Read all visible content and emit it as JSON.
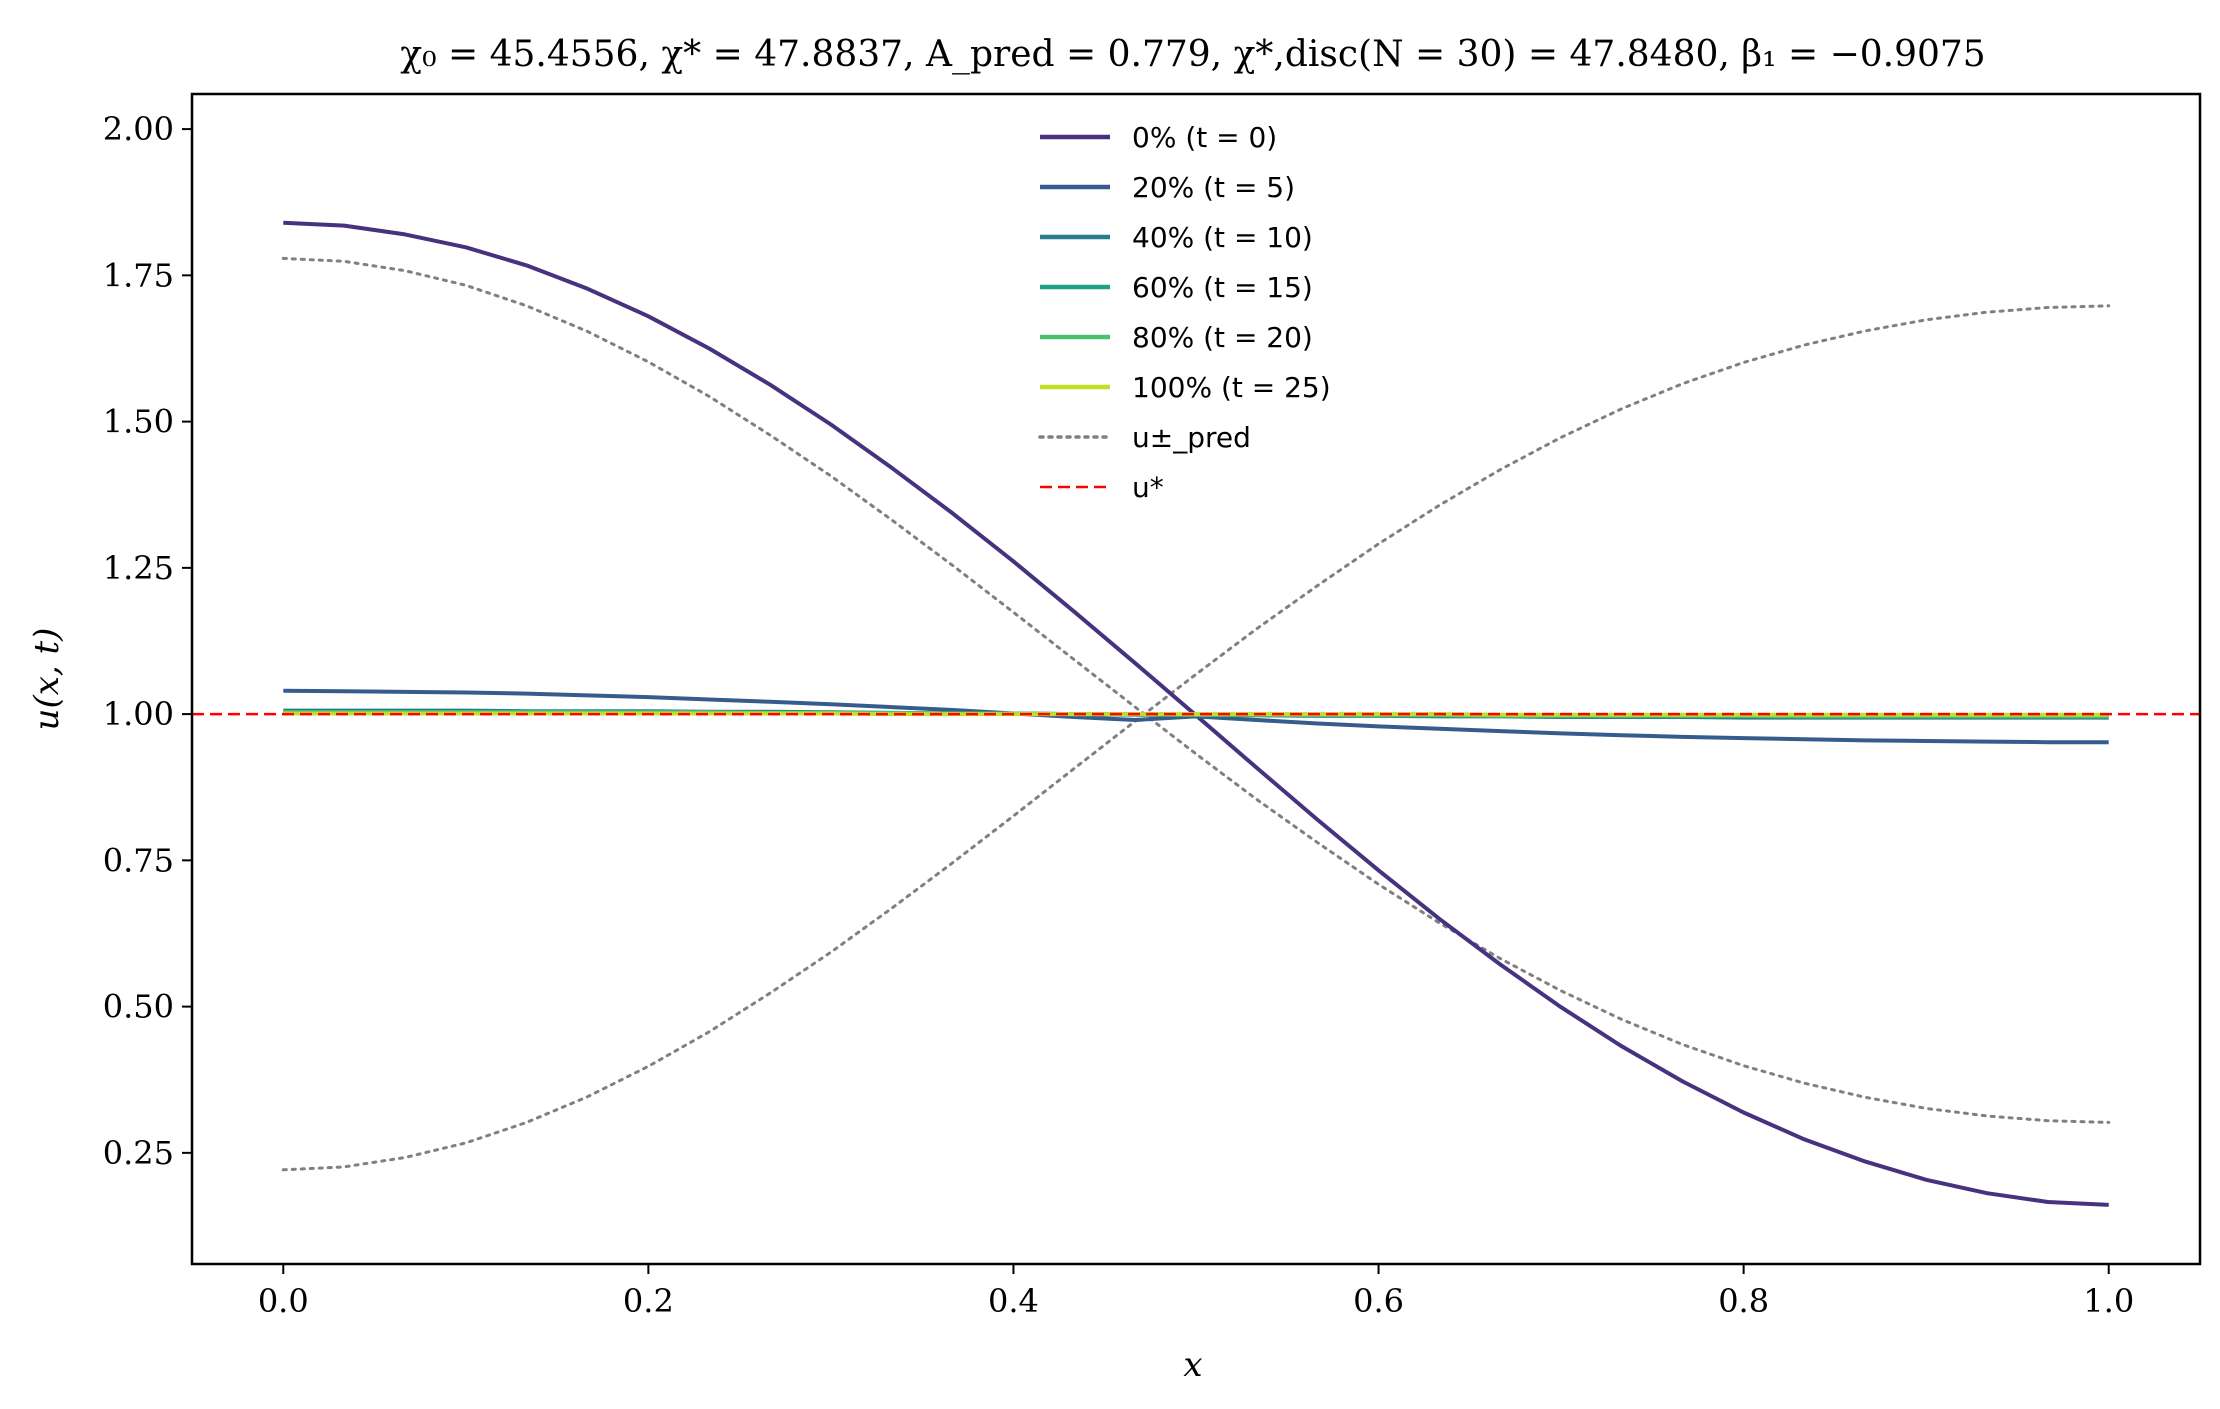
{
  "chart_data": {
    "type": "line",
    "title": "χ₀ = 45.4556,  χ* = 47.8837,  A_pred = 0.779,  χ*,disc(N = 30) = 47.8480,  β₁ = −0.9075",
    "xlabel": "x",
    "ylabel": "u(x, t)",
    "xlim": [
      -0.05,
      1.05
    ],
    "ylim": [
      0.06,
      2.06
    ],
    "xticks": [
      0.0,
      0.2,
      0.4,
      0.6,
      0.8,
      1.0
    ],
    "xtick_labels": [
      "0.0",
      "0.2",
      "0.4",
      "0.6",
      "0.8",
      "1.0"
    ],
    "yticks": [
      0.25,
      0.5,
      0.75,
      1.0,
      1.25,
      1.5,
      1.75,
      2.0
    ],
    "ytick_labels": [
      "0.25",
      "0.50",
      "0.75",
      "1.00",
      "1.25",
      "1.50",
      "1.75",
      "2.00"
    ],
    "grid": false,
    "legend_position": "top-center",
    "x": [
      0.0,
      0.0333,
      0.0667,
      0.1,
      0.1333,
      0.1667,
      0.2,
      0.2333,
      0.2667,
      0.3,
      0.3333,
      0.3667,
      0.4,
      0.4333,
      0.4667,
      0.5,
      0.5333,
      0.5667,
      0.6,
      0.6333,
      0.6667,
      0.7,
      0.7333,
      0.7667,
      0.8,
      0.8333,
      0.8667,
      0.9,
      0.9333,
      0.9667,
      1.0
    ],
    "series": [
      {
        "name": "0% (t = 0)",
        "color": "#46327e",
        "style": "solid",
        "values": [
          1.84,
          1.835,
          1.82,
          1.798,
          1.767,
          1.727,
          1.68,
          1.625,
          1.563,
          1.495,
          1.421,
          1.343,
          1.261,
          1.175,
          1.087,
          0.998,
          0.908,
          0.819,
          0.733,
          0.65,
          0.572,
          0.499,
          0.432,
          0.372,
          0.319,
          0.273,
          0.235,
          0.204,
          0.181,
          0.166,
          0.161
        ]
      },
      {
        "name": "20% (t = 5)",
        "color": "#365c8d",
        "style": "solid",
        "values": [
          1.04,
          1.039,
          1.038,
          1.037,
          1.035,
          1.032,
          1.029,
          1.025,
          1.021,
          1.017,
          1.012,
          1.007,
          1.001,
          0.995,
          0.99,
          0.996,
          0.99,
          0.984,
          0.979,
          0.975,
          0.971,
          0.967,
          0.964,
          0.961,
          0.959,
          0.957,
          0.955,
          0.954,
          0.953,
          0.952,
          0.952
        ]
      },
      {
        "name": "40% (t = 10)",
        "color": "#277f8e",
        "style": "solid",
        "values": [
          1.006,
          1.006,
          1.006,
          1.006,
          1.005,
          1.005,
          1.005,
          1.004,
          1.004,
          1.003,
          1.002,
          1.001,
          1.001,
          1.0,
          0.999,
          0.998,
          0.998,
          0.997,
          0.997,
          0.996,
          0.996,
          0.995,
          0.995,
          0.995,
          0.994,
          0.994,
          0.994,
          0.994,
          0.994,
          0.994,
          0.994
        ]
      },
      {
        "name": "60% (t = 15)",
        "color": "#1fa187",
        "style": "solid",
        "values": [
          1.003,
          1.003,
          1.003,
          1.003,
          1.003,
          1.003,
          1.002,
          1.002,
          1.002,
          1.002,
          1.001,
          1.001,
          1.001,
          1.0,
          1.0,
          0.999,
          0.999,
          0.999,
          0.998,
          0.998,
          0.998,
          0.998,
          0.997,
          0.997,
          0.997,
          0.997,
          0.997,
          0.997,
          0.997,
          0.997,
          0.997
        ]
      },
      {
        "name": "80% (t = 20)",
        "color": "#4ac16d",
        "style": "solid",
        "values": [
          1.003,
          1.003,
          1.003,
          1.003,
          1.003,
          1.003,
          1.003,
          1.003,
          1.002,
          1.002,
          1.002,
          1.001,
          1.001,
          1.0,
          1.0,
          0.999,
          0.999,
          0.998,
          0.998,
          0.998,
          0.997,
          0.997,
          0.997,
          0.997,
          0.997,
          0.996,
          0.996,
          0.996,
          0.996,
          0.996,
          0.996
        ]
      },
      {
        "name": "100% (t = 25)",
        "color": "#c0df25",
        "style": "solid",
        "values": [
          1.001,
          1.001,
          1.001,
          1.001,
          1.001,
          1.001,
          1.001,
          1.001,
          1.001,
          1.001,
          1.0,
          1.0,
          1.0,
          1.0,
          1.0,
          1.0,
          1.0,
          1.0,
          1.0,
          1.0,
          0.999,
          0.999,
          0.999,
          0.999,
          0.999,
          0.999,
          0.999,
          0.999,
          0.999,
          0.999,
          0.999
        ]
      },
      {
        "name": "u±_pred",
        "color": "#808080",
        "style": "dotted",
        "legend": true,
        "values": [
          1.779,
          1.774,
          1.758,
          1.733,
          1.698,
          1.654,
          1.602,
          1.543,
          1.477,
          1.407,
          1.332,
          1.254,
          1.174,
          1.093,
          1.012,
          0.932,
          0.854,
          0.78,
          0.709,
          0.643,
          0.582,
          0.527,
          0.478,
          0.435,
          0.399,
          0.369,
          0.345,
          0.326,
          0.313,
          0.305,
          0.302
        ]
      },
      {
        "name": "u-_pred",
        "color": "#808080",
        "style": "dotted",
        "legend": false,
        "values": [
          0.221,
          0.226,
          0.242,
          0.267,
          0.302,
          0.346,
          0.398,
          0.457,
          0.523,
          0.593,
          0.668,
          0.746,
          0.826,
          0.907,
          0.988,
          1.068,
          1.146,
          1.22,
          1.291,
          1.357,
          1.418,
          1.473,
          1.522,
          1.565,
          1.601,
          1.631,
          1.655,
          1.674,
          1.687,
          1.695,
          1.698
        ]
      }
    ],
    "hlines": [
      {
        "name": "u*",
        "y": 1.0,
        "color": "#ff0000",
        "style": "dashed"
      }
    ],
    "legend": [
      {
        "label": "0% (t = 0)",
        "color": "#46327e",
        "style": "solid"
      },
      {
        "label": "20% (t = 5)",
        "color": "#365c8d",
        "style": "solid"
      },
      {
        "label": "40% (t = 10)",
        "color": "#277f8e",
        "style": "solid"
      },
      {
        "label": "60% (t = 15)",
        "color": "#1fa187",
        "style": "solid"
      },
      {
        "label": "80% (t = 20)",
        "color": "#4ac16d",
        "style": "solid"
      },
      {
        "label": "100% (t = 25)",
        "color": "#c0df25",
        "style": "solid"
      },
      {
        "label": "u±_pred",
        "color": "#808080",
        "style": "dotted"
      },
      {
        "label": "u*",
        "color": "#ff0000",
        "style": "dashed"
      }
    ]
  }
}
